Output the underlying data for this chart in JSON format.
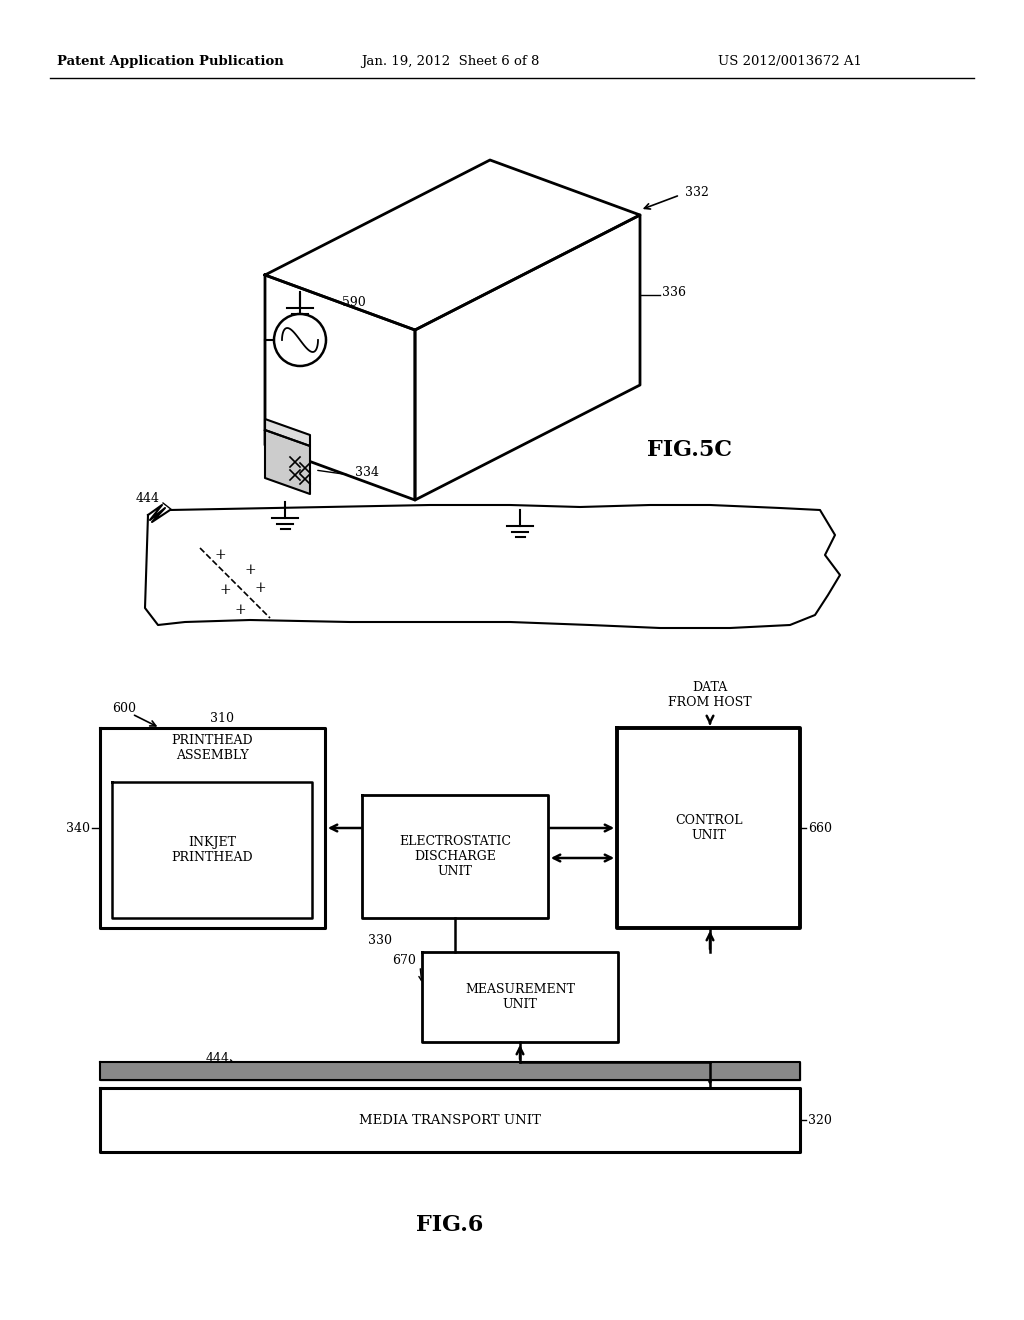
{
  "bg_color": "#ffffff",
  "header_left": "Patent Application Publication",
  "header_mid": "Jan. 19, 2012  Sheet 6 of 8",
  "header_right": "US 2012/0013672 A1",
  "fig5c_label": "FIG.5C",
  "fig6_label": "FIG.6",
  "label_590": "590",
  "label_332": "332",
  "label_336": "336",
  "label_334": "334",
  "label_444_top": "444",
  "label_600": "600",
  "label_310": "310",
  "label_340": "340",
  "label_660": "660",
  "label_330": "330",
  "label_670": "670",
  "label_444_bot": "444",
  "label_320": "320",
  "box_printhead_assembly": "PRINTHEAD\nASSEMBLY",
  "box_inkjet": "INKJET\nPRINTHEAD",
  "box_esd": "ELECTROSTATIC\nDISCHARGE\nUNIT",
  "box_control": "CONTROL\nUNIT",
  "box_measurement": "MEASUREMENT\nUNIT",
  "box_media": "MEDIA TRANSPORT UNIT",
  "text_data_from_host": "DATA\nFROM HOST"
}
